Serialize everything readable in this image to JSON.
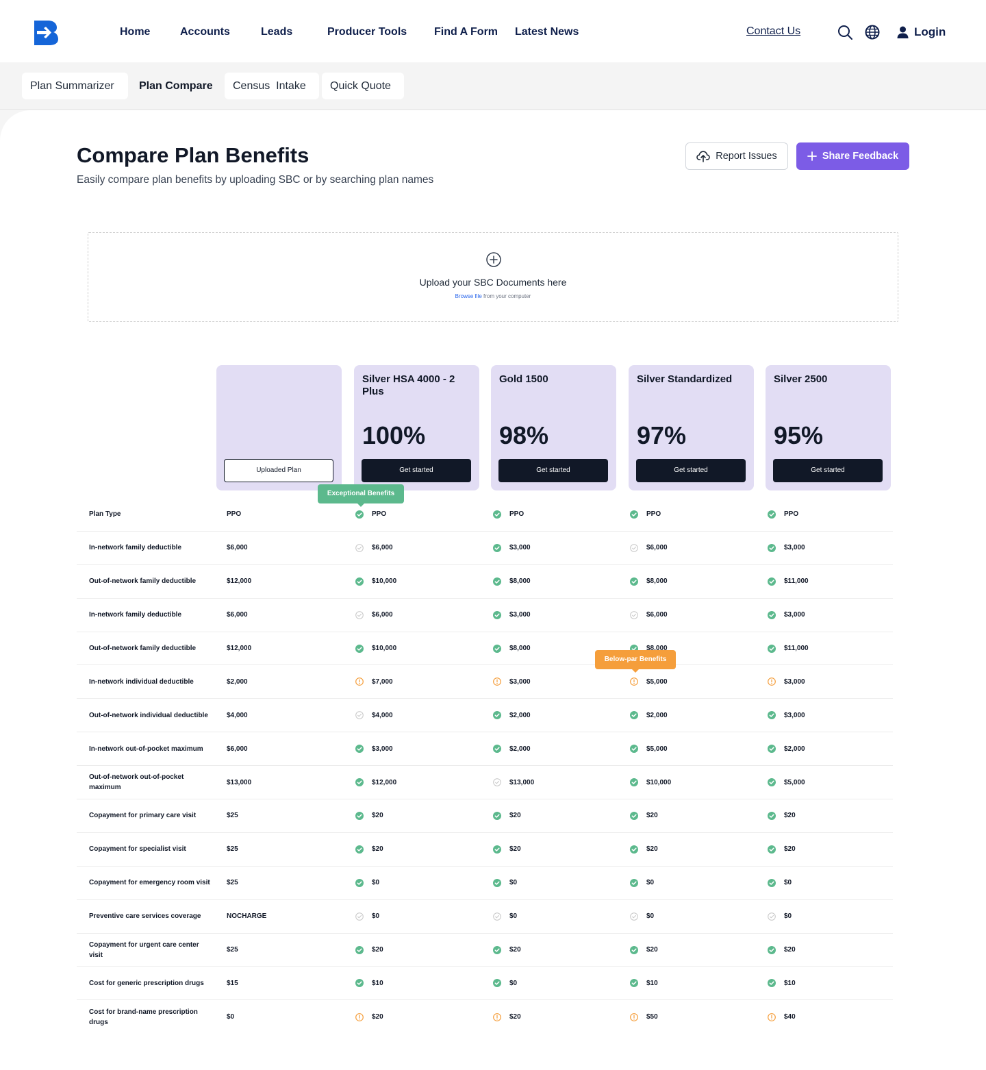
{
  "nav": {
    "links": [
      "Home",
      "Accounts",
      "Leads",
      "Producer Tools",
      "Find A Form",
      "Latest News"
    ],
    "contact": "Contact Us",
    "login": "Login"
  },
  "subnav": {
    "tabs": [
      "Plan Summarizer",
      "Plan Compare",
      "Census  Intake",
      "Quick Quote"
    ]
  },
  "header": {
    "title": "Compare Plan Benefits",
    "subtitle": "Easily compare plan benefits by uploading SBC or by searching plan names",
    "report_label": "Report Issues",
    "share_label": "Share Feedback"
  },
  "upload": {
    "title": "Upload your SBC Documents here",
    "browse_link": "Browse file",
    "hint_rest": " from your computer"
  },
  "uploaded_plan_label": "Uploaded Plan",
  "plans": [
    {
      "name": "Silver HSA 4000 - 2 Plus",
      "score": "100%",
      "cta": "Get started"
    },
    {
      "name": "Gold 1500",
      "score": "98%",
      "cta": "Get started"
    },
    {
      "name": "Silver Standardized",
      "score": "97%",
      "cta": "Get started"
    },
    {
      "name": "Silver 2500",
      "score": "95%",
      "cta": "Get started"
    }
  ],
  "tooltips": {
    "exceptional": "Exceptional Benefits",
    "below_par": "Below-par Benefits"
  },
  "colors": {
    "accent": "#7c5ce6",
    "good": "#5cb98d",
    "warn": "#f59e3b",
    "neutral": "#c7c7c7",
    "card": "#e2ddf4"
  },
  "rows": [
    {
      "label": "Plan Type",
      "base": "PPO",
      "values": [
        [
          "good",
          "PPO"
        ],
        [
          "good",
          "PPO"
        ],
        [
          "good",
          "PPO"
        ],
        [
          "good",
          "PPO"
        ]
      ]
    },
    {
      "label": "In-network family deductible",
      "base": "$6,000",
      "values": [
        [
          "neutral",
          "$6,000"
        ],
        [
          "good",
          "$3,000"
        ],
        [
          "neutral",
          "$6,000"
        ],
        [
          "good",
          "$3,000"
        ]
      ]
    },
    {
      "label": "Out-of-network family deductible",
      "base": "$12,000",
      "values": [
        [
          "good",
          "$10,000"
        ],
        [
          "good",
          "$8,000"
        ],
        [
          "good",
          "$8,000"
        ],
        [
          "good",
          "$11,000"
        ]
      ]
    },
    {
      "label": "In-network family deductible",
      "base": "$6,000",
      "values": [
        [
          "neutral",
          "$6,000"
        ],
        [
          "good",
          "$3,000"
        ],
        [
          "neutral",
          "$6,000"
        ],
        [
          "good",
          "$3,000"
        ]
      ]
    },
    {
      "label": "Out-of-network family deductible",
      "base": "$12,000",
      "values": [
        [
          "good",
          "$10,000"
        ],
        [
          "good",
          "$8,000"
        ],
        [
          "good",
          "$8,000"
        ],
        [
          "good",
          "$11,000"
        ]
      ]
    },
    {
      "label": "In-network individual deductible",
      "base": "$2,000",
      "values": [
        [
          "warn",
          "$7,000"
        ],
        [
          "warn",
          "$3,000"
        ],
        [
          "warn",
          "$5,000"
        ],
        [
          "warn",
          "$3,000"
        ]
      ]
    },
    {
      "label": "Out-of-network individual deductible",
      "base": "$4,000",
      "values": [
        [
          "neutral",
          "$4,000"
        ],
        [
          "good",
          "$2,000"
        ],
        [
          "good",
          "$2,000"
        ],
        [
          "good",
          "$3,000"
        ]
      ]
    },
    {
      "label": "In-network out-of-pocket maximum",
      "base": "$6,000",
      "values": [
        [
          "good",
          "$3,000"
        ],
        [
          "good",
          "$2,000"
        ],
        [
          "good",
          "$5,000"
        ],
        [
          "good",
          "$2,000"
        ]
      ]
    },
    {
      "label": "Out-of-network out-of-pocket maximum",
      "base": "$13,000",
      "values": [
        [
          "good",
          "$12,000"
        ],
        [
          "neutral",
          "$13,000"
        ],
        [
          "good",
          "$10,000"
        ],
        [
          "good",
          "$5,000"
        ]
      ]
    },
    {
      "label": "Copayment for primary care visit",
      "base": "$25",
      "values": [
        [
          "good",
          "$20"
        ],
        [
          "good",
          "$20"
        ],
        [
          "good",
          "$20"
        ],
        [
          "good",
          "$20"
        ]
      ]
    },
    {
      "label": "Copayment for specialist visit",
      "base": "$25",
      "values": [
        [
          "good",
          "$20"
        ],
        [
          "good",
          "$20"
        ],
        [
          "good",
          "$20"
        ],
        [
          "good",
          "$20"
        ]
      ]
    },
    {
      "label": "Copayment for emergency room visit",
      "base": "$25",
      "values": [
        [
          "good",
          "$0"
        ],
        [
          "good",
          "$0"
        ],
        [
          "good",
          "$0"
        ],
        [
          "good",
          "$0"
        ]
      ]
    },
    {
      "label": "Preventive care services coverage",
      "base": "NOCHARGE",
      "values": [
        [
          "neutral",
          "$0"
        ],
        [
          "neutral",
          "$0"
        ],
        [
          "neutral",
          "$0"
        ],
        [
          "neutral",
          "$0"
        ]
      ]
    },
    {
      "label": "Copayment for urgent care center visit",
      "base": "$25",
      "values": [
        [
          "good",
          "$20"
        ],
        [
          "good",
          "$20"
        ],
        [
          "good",
          "$20"
        ],
        [
          "good",
          "$20"
        ]
      ]
    },
    {
      "label": "Cost for generic prescription drugs",
      "base": "$15",
      "values": [
        [
          "good",
          "$10"
        ],
        [
          "good",
          "$0"
        ],
        [
          "good",
          "$10"
        ],
        [
          "good",
          "$10"
        ]
      ]
    },
    {
      "label": "Cost for brand-name prescription drugs",
      "base": "$0",
      "values": [
        [
          "warn",
          "$20"
        ],
        [
          "warn",
          "$20"
        ],
        [
          "warn",
          "$50"
        ],
        [
          "warn",
          "$40"
        ]
      ]
    }
  ]
}
